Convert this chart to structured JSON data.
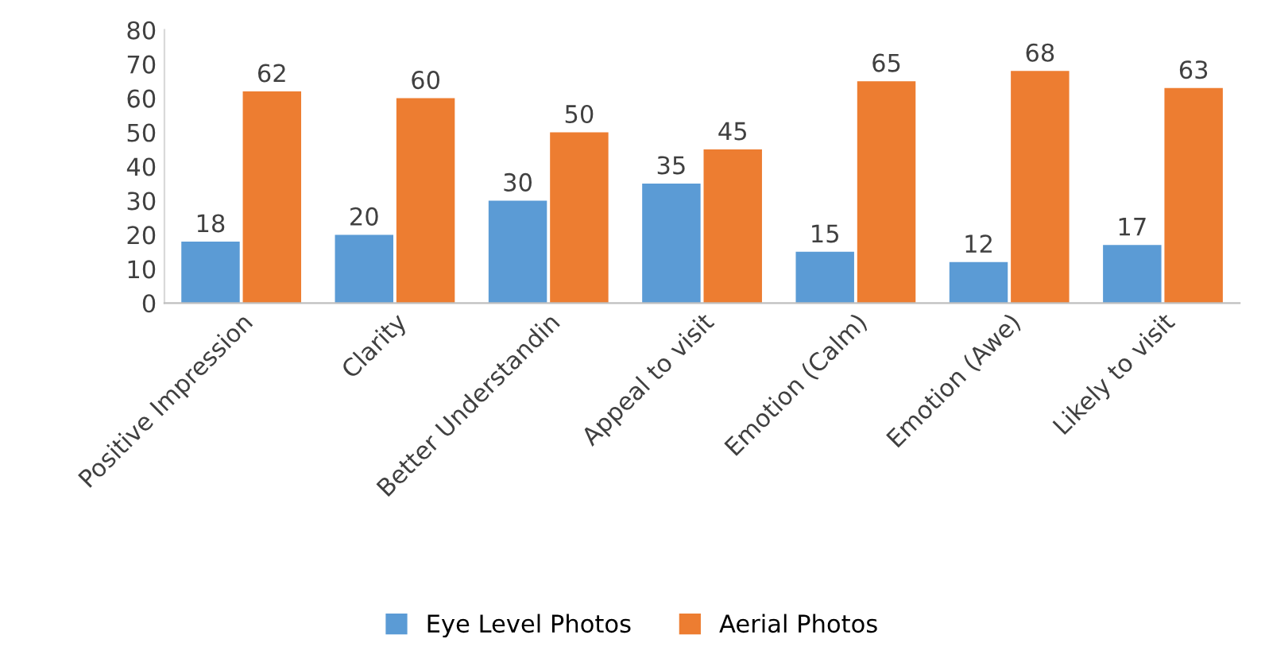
{
  "chart_data": {
    "type": "bar",
    "categories": [
      "Positive Impression",
      "Clarity",
      "Better Understandin",
      "Appeal to visit",
      "Emotion (Calm)",
      "Emotion (Awe)",
      "Likely to visit"
    ],
    "series": [
      {
        "name": "Eye Level Photos",
        "color": "#5b9bd5",
        "values": [
          18,
          20,
          30,
          35,
          15,
          12,
          17
        ]
      },
      {
        "name": "Aerial Photos",
        "color": "#ed7d31",
        "values": [
          62,
          60,
          50,
          45,
          65,
          68,
          63
        ]
      }
    ],
    "ylim": [
      0,
      80
    ],
    "yticks": [
      0,
      10,
      20,
      30,
      40,
      50,
      60,
      70,
      80
    ],
    "data_labels": true,
    "legend": "bottom",
    "grid": false
  }
}
